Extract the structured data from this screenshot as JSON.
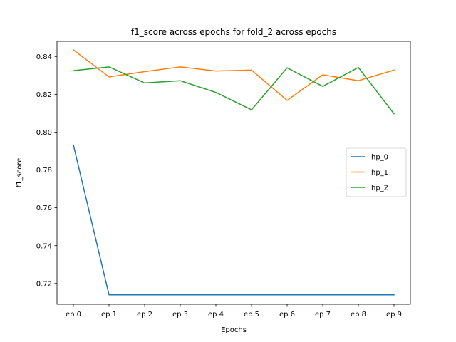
{
  "chart_data": {
    "type": "line",
    "title": "f1_score across epochs for fold_2 across epochs",
    "xlabel": "Epochs",
    "ylabel": "f1_score",
    "categories": [
      "ep 0",
      "ep 1",
      "ep 2",
      "ep 3",
      "ep 4",
      "ep 5",
      "ep 6",
      "ep 7",
      "ep 8",
      "ep 9"
    ],
    "ylim": [
      0.709,
      0.848
    ],
    "yticks": [
      0.72,
      0.74,
      0.76,
      0.78,
      0.8,
      0.82,
      0.84
    ],
    "ytick_labels": [
      "0.72",
      "0.74",
      "0.76",
      "0.78",
      "0.80",
      "0.82",
      "0.84"
    ],
    "grid": false,
    "legend_position": "right",
    "series": [
      {
        "name": "hp_0",
        "color": "#1f77b4",
        "values": [
          0.7932,
          0.714,
          0.714,
          0.714,
          0.714,
          0.714,
          0.714,
          0.714,
          0.714,
          0.714
        ]
      },
      {
        "name": "hp_1",
        "color": "#ff7f0e",
        "values": [
          0.8435,
          0.8292,
          0.832,
          0.8345,
          0.8323,
          0.8328,
          0.8168,
          0.8303,
          0.8272,
          0.8328
        ]
      },
      {
        "name": "hp_2",
        "color": "#2ca02c",
        "values": [
          0.8325,
          0.8345,
          0.826,
          0.8272,
          0.821,
          0.8118,
          0.834,
          0.8242,
          0.8342,
          0.8097
        ]
      }
    ]
  }
}
